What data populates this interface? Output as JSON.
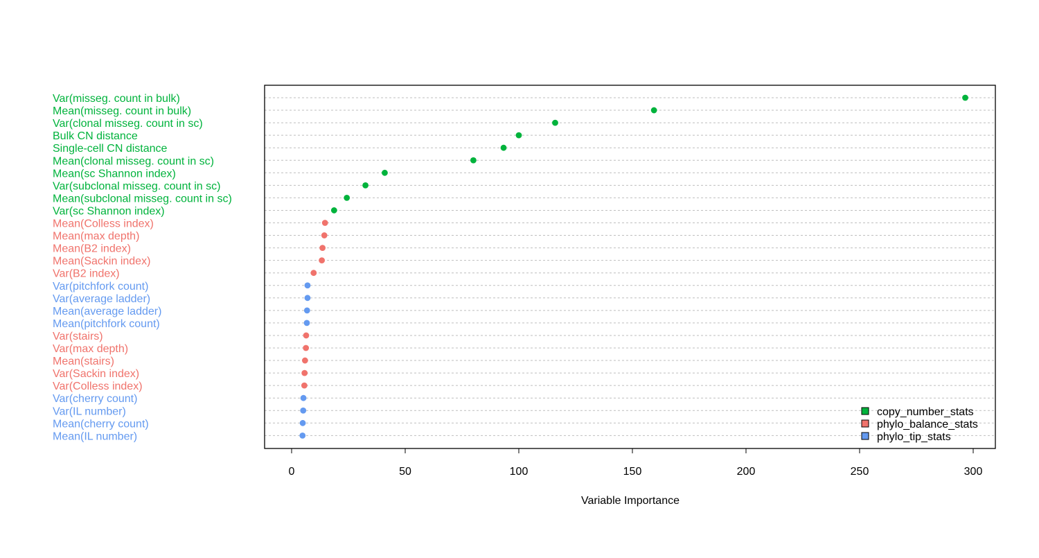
{
  "colors": {
    "copy_number_stats": "#00B33C",
    "phylo_balance_stats": "#F0736C",
    "phylo_tip_stats": "#649AF0",
    "grid": "#bebebe",
    "axis": "#000000"
  },
  "chart_data": {
    "type": "scatter",
    "title": "",
    "xlabel": "Variable Importance",
    "ylabel": "",
    "xlim": [
      -12,
      310
    ],
    "xticks": [
      "0",
      "50",
      "100",
      "150",
      "200",
      "250",
      "300"
    ],
    "grid": "horizontal dotted",
    "legend_position": "bottom-right",
    "legend": [
      {
        "label": "copy_number_stats",
        "group": "copy_number_stats"
      },
      {
        "label": "phylo_balance_stats",
        "group": "phylo_balance_stats"
      },
      {
        "label": "phylo_tip_stats",
        "group": "phylo_tip_stats"
      }
    ],
    "points": [
      {
        "label": "Var(misseg. count in bulk)",
        "value": 296.5,
        "group": "copy_number_stats"
      },
      {
        "label": "Mean(misseg. count in bulk)",
        "value": 159.5,
        "group": "copy_number_stats"
      },
      {
        "label": "Var(clonal misseg. count in sc)",
        "value": 116,
        "group": "copy_number_stats"
      },
      {
        "label": "Bulk CN distance",
        "value": 100,
        "group": "copy_number_stats"
      },
      {
        "label": "Single-cell CN distance",
        "value": 93.3,
        "group": "copy_number_stats"
      },
      {
        "label": "Mean(clonal misseg. count in sc)",
        "value": 80,
        "group": "copy_number_stats"
      },
      {
        "label": "Mean(sc Shannon index)",
        "value": 41,
        "group": "copy_number_stats"
      },
      {
        "label": "Var(subclonal misseg. count in sc)",
        "value": 32.5,
        "group": "copy_number_stats"
      },
      {
        "label": "Mean(subclonal misseg. count in sc)",
        "value": 24.3,
        "group": "copy_number_stats"
      },
      {
        "label": "Var(sc Shannon index)",
        "value": 18.7,
        "group": "copy_number_stats"
      },
      {
        "label": "Mean(Colless index)",
        "value": 14.7,
        "group": "phylo_balance_stats"
      },
      {
        "label": "Mean(max depth)",
        "value": 14.4,
        "group": "phylo_balance_stats"
      },
      {
        "label": "Mean(B2 index)",
        "value": 13.6,
        "group": "phylo_balance_stats"
      },
      {
        "label": "Mean(Sackin index)",
        "value": 13.3,
        "group": "phylo_balance_stats"
      },
      {
        "label": "Var(B2 index)",
        "value": 9.7,
        "group": "phylo_balance_stats"
      },
      {
        "label": "Var(pitchfork count)",
        "value": 7,
        "group": "phylo_tip_stats"
      },
      {
        "label": "Var(average ladder)",
        "value": 7,
        "group": "phylo_tip_stats"
      },
      {
        "label": "Mean(average ladder)",
        "value": 6.8,
        "group": "phylo_tip_stats"
      },
      {
        "label": "Mean(pitchfork count)",
        "value": 6.7,
        "group": "phylo_tip_stats"
      },
      {
        "label": "Var(stairs)",
        "value": 6.4,
        "group": "phylo_balance_stats"
      },
      {
        "label": "Var(max depth)",
        "value": 6.3,
        "group": "phylo_balance_stats"
      },
      {
        "label": "Mean(stairs)",
        "value": 5.9,
        "group": "phylo_balance_stats"
      },
      {
        "label": "Var(Sackin index)",
        "value": 5.7,
        "group": "phylo_balance_stats"
      },
      {
        "label": "Var(Colless index)",
        "value": 5.6,
        "group": "phylo_balance_stats"
      },
      {
        "label": "Var(cherry count)",
        "value": 5.2,
        "group": "phylo_tip_stats"
      },
      {
        "label": "Var(IL number)",
        "value": 5.1,
        "group": "phylo_tip_stats"
      },
      {
        "label": "Mean(cherry count)",
        "value": 4.9,
        "group": "phylo_tip_stats"
      },
      {
        "label": "Mean(IL number)",
        "value": 4.8,
        "group": "phylo_tip_stats"
      }
    ]
  }
}
